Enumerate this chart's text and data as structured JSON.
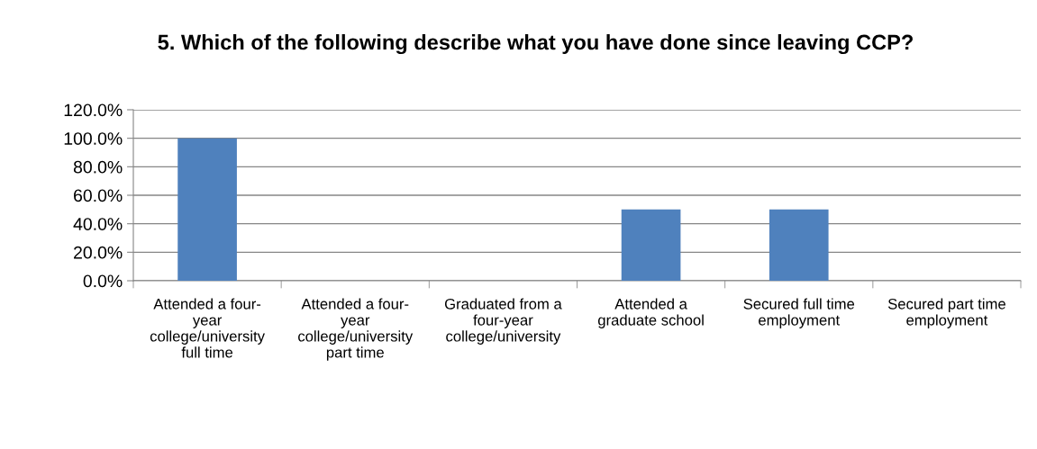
{
  "chart_data": {
    "type": "bar",
    "title": "5. Which of the following describe what you have done since leaving CCP?",
    "categories": [
      "Attended a four-\nyear\ncollege/university\nfull time",
      "Attended a four-\nyear\ncollege/university\npart time",
      "Graduated from a\nfour-year\ncollege/university",
      "Attended a\ngraduate school",
      "Secured full time\nemployment",
      "Secured part time\nemployment"
    ],
    "values": [
      100,
      0,
      0,
      50,
      50,
      0
    ],
    "color": "#4f81bd",
    "ylim": [
      0,
      120
    ],
    "yticks": [
      {
        "value": 0,
        "label": "0.0%"
      },
      {
        "value": 20,
        "label": "20.0%"
      },
      {
        "value": 40,
        "label": "40.0%"
      },
      {
        "value": 60,
        "label": "60.0%"
      },
      {
        "value": 80,
        "label": "80.0%"
      },
      {
        "value": 100,
        "label": "100.0%"
      },
      {
        "value": 120,
        "label": "120.0%"
      }
    ],
    "grid": "y",
    "legend": false
  }
}
